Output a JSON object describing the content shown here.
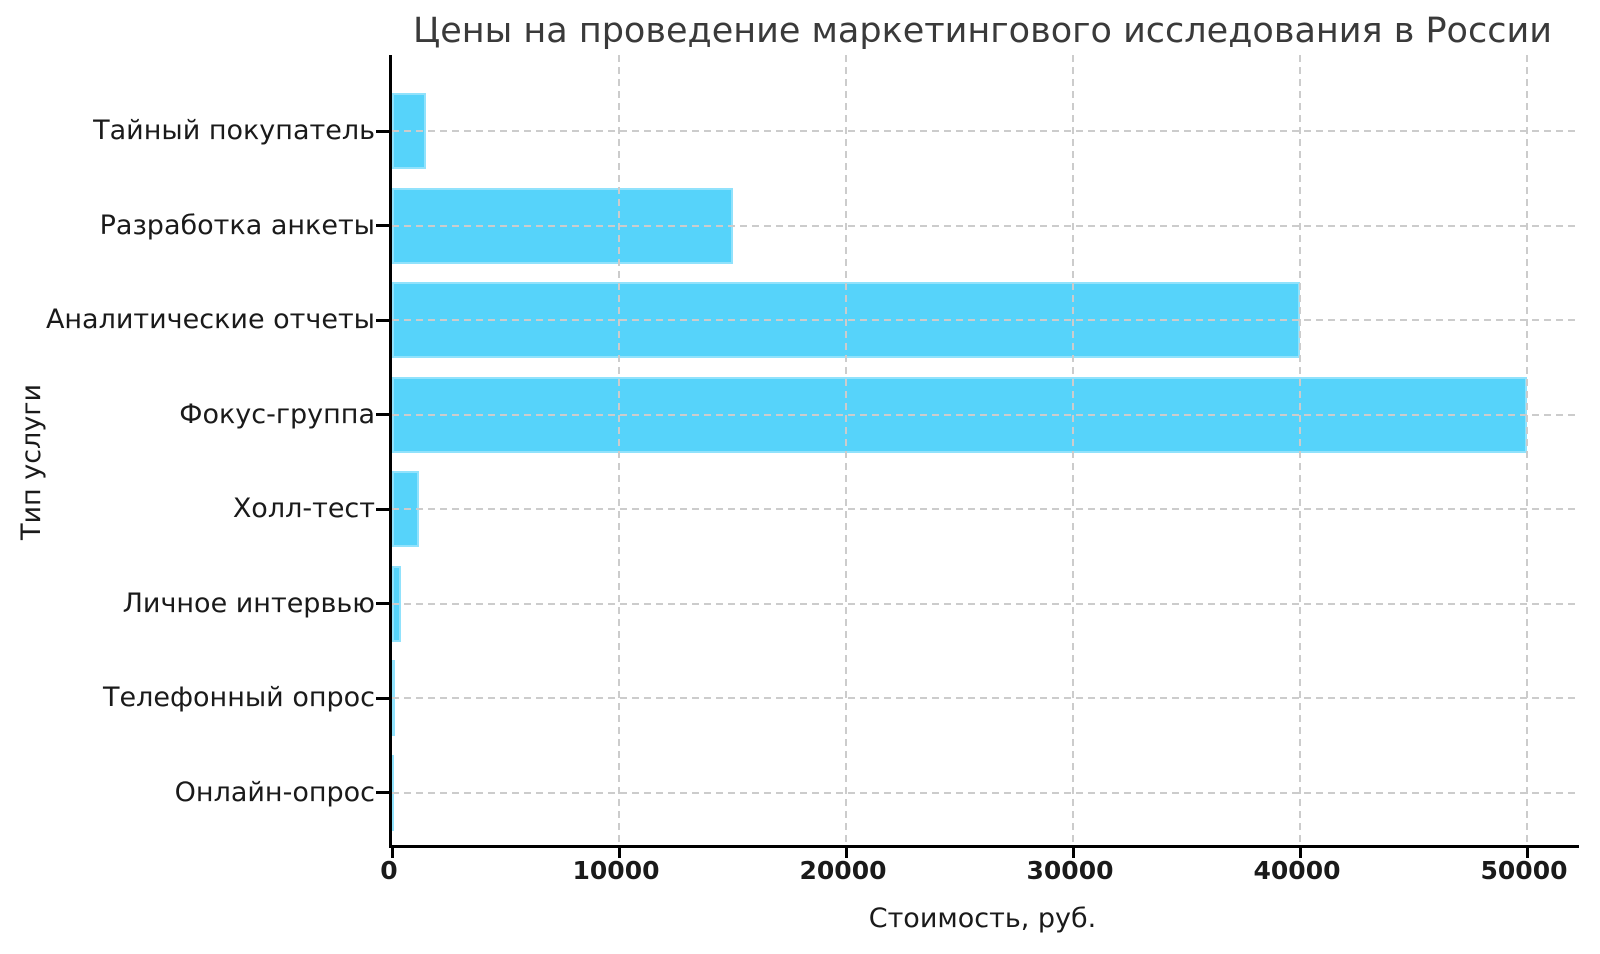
{
  "chart_data": {
    "type": "bar",
    "orientation": "horizontal",
    "title": "Цены на проведение маркетингового исследования в России",
    "xlabel": "Стоимость, руб.",
    "ylabel": "Тип услуги",
    "categories": [
      "Тайный покупатель",
      "Разработка анкеты",
      "Аналитические отчеты",
      "Фокус-группа",
      "Холл-тест",
      "Личное интервью",
      "Телефонный опрос",
      "Онлайн-опрос"
    ],
    "values": [
      1500,
      15000,
      40000,
      50000,
      1200,
      400,
      150,
      100
    ],
    "xticks": [
      "0",
      "10000",
      "20000",
      "30000",
      "40000",
      "50000"
    ],
    "xlim": [
      0,
      52300
    ],
    "grid": "dashed-both-axes-above-bars",
    "legend": "none",
    "bar_color": "#56d3fa",
    "grid_color": "#cccccc",
    "spine_color": "#000000",
    "text_color": "#1a1a1a",
    "title_color": "#3a3a3a",
    "background_color": "#ffffff"
  }
}
